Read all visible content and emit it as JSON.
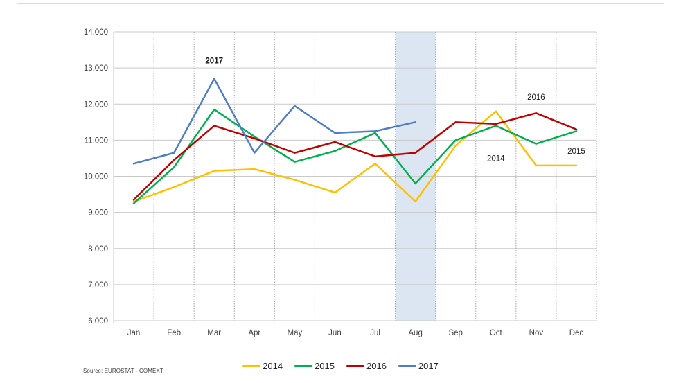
{
  "page": {
    "source_note": "Source: EUROSTAT - COMEXT"
  },
  "chart_data": {
    "type": "line",
    "title": "",
    "xlabel": "",
    "ylabel": "",
    "categories": [
      "Jan",
      "Feb",
      "Mar",
      "Apr",
      "May",
      "Jun",
      "Jul",
      "Aug",
      "Sep",
      "Oct",
      "Nov",
      "Dec"
    ],
    "ylim": [
      6000,
      14000
    ],
    "ytick_step": 1000,
    "ytick_labels": [
      "6.000",
      "7.000",
      "8.000",
      "9.000",
      "10.000",
      "11.000",
      "12.000",
      "13.000",
      "14.000"
    ],
    "grid": {
      "horizontal": true,
      "vertical": true
    },
    "legend_position": "bottom",
    "highlight_band": {
      "month": "Aug",
      "color": "#dce6f2"
    },
    "series": [
      {
        "name": "2014",
        "color": "#FFC000",
        "values": [
          9300,
          9700,
          10150,
          10200,
          9900,
          9550,
          10350,
          9300,
          10850,
          11800,
          10300,
          10300
        ]
      },
      {
        "name": "2015",
        "color": "#00B050",
        "values": [
          9250,
          10250,
          11850,
          11100,
          10400,
          10700,
          11200,
          9800,
          11000,
          11400,
          10900,
          11250
        ]
      },
      {
        "name": "2016",
        "color": "#C00000",
        "values": [
          9350,
          10450,
          11400,
          11050,
          10650,
          10950,
          10550,
          10650,
          11500,
          11450,
          11750,
          11300
        ]
      },
      {
        "name": "2017",
        "color": "#4E7DC5",
        "values": [
          10350,
          10650,
          12700,
          10650,
          11950,
          11200,
          11250,
          11500,
          null,
          null,
          null,
          null
        ]
      }
    ],
    "annotations": [
      {
        "text": "2017",
        "month_index": 2,
        "value": 13200,
        "bold": true
      },
      {
        "text": "2014",
        "month_index": 9,
        "value": 10500,
        "bold": false
      },
      {
        "text": "2016",
        "month_index": 10,
        "value": 12200,
        "bold": false
      },
      {
        "text": "2015",
        "month_index": 11,
        "value": 10700,
        "bold": false
      }
    ],
    "style": {
      "h_grid_color": "#c9c9c9",
      "v_grid_color": "#a6a6a6",
      "axis_color": "#c9c9c9",
      "tick_label_color": "#404040",
      "annotation_color": "#1a1a1a",
      "line_width": 2.5
    }
  }
}
